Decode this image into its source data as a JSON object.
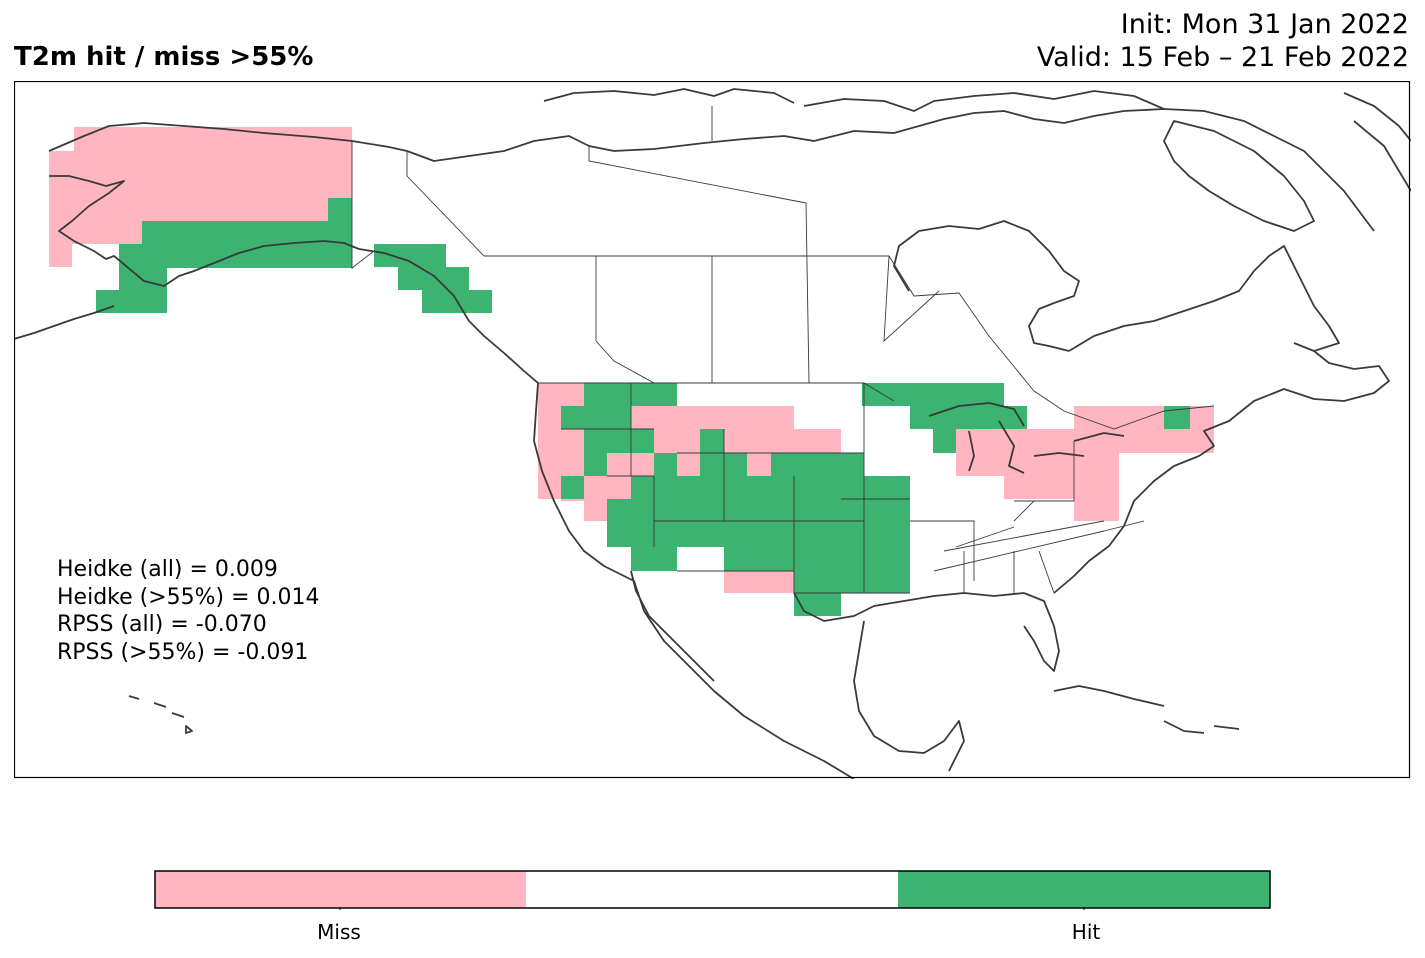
{
  "title": "T2m hit / miss  >55%",
  "init": "Init: Mon 31 Jan 2022",
  "valid": "Valid: 15 Feb – 21 Feb 2022",
  "stats": {
    "heidke_all": "Heidke (all) = 0.009",
    "heidke_55": "Heidke (>55%) = 0.014",
    "rpss_all": "RPSS (all) = -0.070",
    "rpss_55": "RPSS (>55%) = -0.091"
  },
  "colorbar": {
    "categories": [
      "Miss",
      "",
      "Hit"
    ],
    "colors": [
      "#ffb6c1",
      "#ffffff",
      "#3cb371"
    ],
    "miss_label": "Miss",
    "hit_label": "Hit"
  },
  "colors": {
    "miss": "#ffb6c1",
    "hit": "#3cb371",
    "coast": "#3a3a3a"
  }
}
